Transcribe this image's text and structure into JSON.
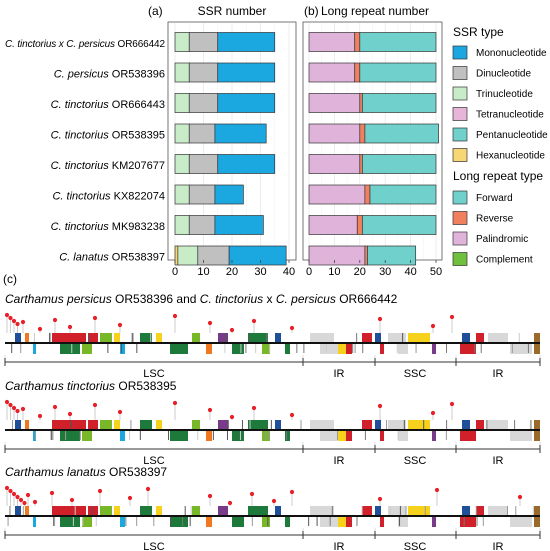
{
  "chart_data": [
    {
      "type": "bar",
      "panel_label": "(a)",
      "title": "SSR number",
      "orientation": "horizontal",
      "stacked": true,
      "categories": [
        {
          "species": "C. tinctorius x C. persicus",
          "accession": "OR666442"
        },
        {
          "species": "C. persicus",
          "accession": "OR538396"
        },
        {
          "species": "C. tinctorius",
          "accession": "OR666443"
        },
        {
          "species": "C. tinctorius",
          "accession": "OR538395"
        },
        {
          "species": "C. tinctorius",
          "accession": "KM207677"
        },
        {
          "species": "C. tinctorius",
          "accession": "KX822074"
        },
        {
          "species": "C. tinctorius",
          "accession": "MK983238"
        },
        {
          "species": "C. lanatus",
          "accession": "OR538397"
        }
      ],
      "series": [
        {
          "name": "Mononucleotide",
          "color": "#1ba8e0",
          "values": [
            20,
            20,
            20,
            18,
            20,
            10,
            17,
            20
          ]
        },
        {
          "name": "Dinucleotide",
          "color": "#c0c0c0",
          "values": [
            10,
            10,
            10,
            9,
            10,
            9,
            9,
            11
          ]
        },
        {
          "name": "Trinucleotide",
          "color": "#c8ecc8",
          "values": [
            5,
            5,
            5,
            5,
            5,
            5,
            5,
            7
          ]
        },
        {
          "name": "Tetranucleotide",
          "color": "#e8b4d8",
          "values": [
            0,
            0,
            0,
            0,
            0,
            0,
            0,
            0
          ]
        },
        {
          "name": "Pentanucleotide",
          "color": "#6fd0cc",
          "values": [
            0,
            0,
            0,
            0,
            0,
            0,
            0,
            0
          ]
        },
        {
          "name": "Hexanucleotide",
          "color": "#f7d774",
          "values": [
            0,
            0,
            0,
            0,
            0,
            0,
            0,
            1
          ]
        }
      ],
      "xlim": [
        0,
        40
      ],
      "xticks": [
        0,
        10,
        20,
        30,
        40
      ],
      "grid": true,
      "legend_title": "SSR type",
      "legend_position": "right"
    },
    {
      "type": "bar",
      "panel_label": "(b)",
      "title": "Long repeat number",
      "orientation": "horizontal",
      "stacked": true,
      "series": [
        {
          "name": "Forward",
          "color": "#6fd0cc",
          "values": [
            30,
            30,
            29,
            29,
            29,
            26,
            29,
            19
          ]
        },
        {
          "name": "Reverse",
          "color": "#f08060",
          "values": [
            2,
            2,
            1,
            2,
            1,
            2,
            2,
            1
          ]
        },
        {
          "name": "Palindromic",
          "color": "#e0b4da",
          "values": [
            18,
            18,
            20,
            20,
            20,
            22,
            19,
            22
          ]
        },
        {
          "name": "Complement",
          "color": "#70c040",
          "values": [
            0,
            0,
            0,
            0,
            0,
            0,
            0,
            0
          ]
        }
      ],
      "xlim": [
        0,
        50
      ],
      "xticks": [
        0,
        10,
        20,
        30,
        40,
        50
      ],
      "grid": true,
      "legend_title": "Long repeat type",
      "legend_position": "right"
    }
  ],
  "panel_c": {
    "panel_label": "(c)",
    "region_labels": [
      "LSC",
      "IR",
      "SSC",
      "IR"
    ],
    "genomes": [
      {
        "parts": [
          {
            "text": "Carthamus persicus",
            "italic": true
          },
          {
            "text": " OR538396   and   ",
            "italic": false
          },
          {
            "text": "C. tinctorius",
            "italic": true
          },
          {
            "text": " x ",
            "italic": false
          },
          {
            "text": "C. persicus",
            "italic": true
          },
          {
            "text": " OR666442",
            "italic": false
          }
        ]
      },
      {
        "parts": [
          {
            "text": "Carthamus tinctorius",
            "italic": true
          },
          {
            "text": " OR538395",
            "italic": false
          }
        ]
      },
      {
        "parts": [
          {
            "text": "Carthamus lanatus",
            "italic": true
          },
          {
            "text": " OR538397",
            "italic": false
          }
        ]
      }
    ]
  }
}
